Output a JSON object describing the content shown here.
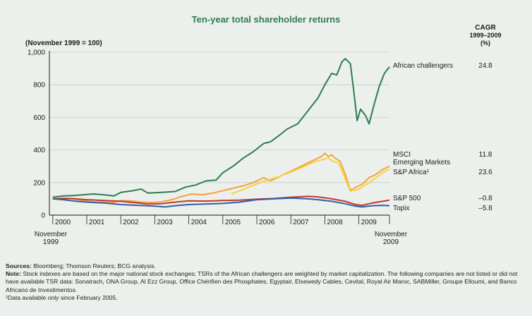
{
  "chart_data": {
    "type": "line",
    "title": "Ten-year total shareholder returns",
    "ylabel": "(November 1999 = 100)",
    "ylim": [
      0,
      1000
    ],
    "yticks": [
      "0",
      "200",
      "400",
      "600",
      "800",
      "1,000"
    ],
    "xlim": [
      1999.9,
      2009.9
    ],
    "xticks": [
      {
        "label": "2000",
        "x": 2000.0
      },
      {
        "label": "2001",
        "x": 2001.0
      },
      {
        "label": "2002",
        "x": 2002.0
      },
      {
        "label": "2003",
        "x": 2003.0
      },
      {
        "label": "2004",
        "x": 2004.0
      },
      {
        "label": "2005",
        "x": 2005.0
      },
      {
        "label": "2006",
        "x": 2006.0
      },
      {
        "label": "2007",
        "x": 2007.0
      },
      {
        "label": "2008",
        "x": 2008.0
      },
      {
        "label": "2009",
        "x": 2009.0
      }
    ],
    "x_start_label": [
      "November",
      "1999"
    ],
    "x_end_label": [
      "November",
      "2009"
    ],
    "cagr_header": [
      "CAGR",
      "1999–2009",
      "(%)"
    ],
    "series": [
      {
        "name": "African challengers",
        "label_lines": [
          "African challengers"
        ],
        "cagr": "24.8",
        "color": "#2e7d4f",
        "points": [
          [
            2000.0,
            110
          ],
          [
            2000.3,
            118
          ],
          [
            2000.6,
            120
          ],
          [
            2000.9,
            125
          ],
          [
            2001.2,
            130
          ],
          [
            2001.5,
            125
          ],
          [
            2001.8,
            118
          ],
          [
            2002.0,
            140
          ],
          [
            2002.3,
            148
          ],
          [
            2002.6,
            160
          ],
          [
            2002.8,
            135
          ],
          [
            2003.2,
            140
          ],
          [
            2003.6,
            145
          ],
          [
            2003.9,
            172
          ],
          [
            2004.2,
            185
          ],
          [
            2004.5,
            210
          ],
          [
            2004.8,
            215
          ],
          [
            2005.0,
            260
          ],
          [
            2005.3,
            300
          ],
          [
            2005.6,
            350
          ],
          [
            2005.9,
            390
          ],
          [
            2006.2,
            440
          ],
          [
            2006.4,
            450
          ],
          [
            2006.6,
            480
          ],
          [
            2006.9,
            530
          ],
          [
            2007.2,
            560
          ],
          [
            2007.5,
            640
          ],
          [
            2007.8,
            720
          ],
          [
            2008.0,
            800
          ],
          [
            2008.2,
            870
          ],
          [
            2008.35,
            860
          ],
          [
            2008.5,
            940
          ],
          [
            2008.6,
            960
          ],
          [
            2008.75,
            930
          ],
          [
            2008.85,
            760
          ],
          [
            2008.95,
            580
          ],
          [
            2009.05,
            650
          ],
          [
            2009.2,
            610
          ],
          [
            2009.3,
            560
          ],
          [
            2009.45,
            680
          ],
          [
            2009.6,
            790
          ],
          [
            2009.75,
            870
          ],
          [
            2009.9,
            910
          ]
        ]
      },
      {
        "name": "MSCI Emerging Markets",
        "label_lines": [
          "MSCI",
          "Emerging Markets"
        ],
        "cagr": "11.8",
        "color": "#f2a33c",
        "points": [
          [
            2000.0,
            100
          ],
          [
            2000.3,
            105
          ],
          [
            2000.6,
            100
          ],
          [
            2000.9,
            90
          ],
          [
            2001.2,
            80
          ],
          [
            2001.5,
            80
          ],
          [
            2001.8,
            78
          ],
          [
            2002.0,
            90
          ],
          [
            2002.3,
            88
          ],
          [
            2002.6,
            80
          ],
          [
            2002.9,
            78
          ],
          [
            2003.2,
            82
          ],
          [
            2003.5,
            95
          ],
          [
            2003.8,
            115
          ],
          [
            2004.1,
            130
          ],
          [
            2004.4,
            125
          ],
          [
            2004.7,
            135
          ],
          [
            2005.0,
            150
          ],
          [
            2005.3,
            165
          ],
          [
            2005.6,
            180
          ],
          [
            2005.9,
            200
          ],
          [
            2006.2,
            230
          ],
          [
            2006.4,
            210
          ],
          [
            2006.7,
            240
          ],
          [
            2007.0,
            270
          ],
          [
            2007.3,
            300
          ],
          [
            2007.6,
            330
          ],
          [
            2007.9,
            360
          ],
          [
            2008.0,
            380
          ],
          [
            2008.1,
            360
          ],
          [
            2008.2,
            370
          ],
          [
            2008.3,
            350
          ],
          [
            2008.45,
            330
          ],
          [
            2008.6,
            250
          ],
          [
            2008.75,
            150
          ],
          [
            2008.9,
            170
          ],
          [
            2009.1,
            190
          ],
          [
            2009.3,
            230
          ],
          [
            2009.5,
            250
          ],
          [
            2009.7,
            280
          ],
          [
            2009.9,
            300
          ]
        ]
      },
      {
        "name": "S&P Africa",
        "label_lines": [
          "S&P Africa¹"
        ],
        "cagr": "23.6",
        "color": "#f6d23a",
        "points": [
          [
            2005.25,
            130
          ],
          [
            2005.5,
            150
          ],
          [
            2005.8,
            175
          ],
          [
            2006.1,
            200
          ],
          [
            2006.4,
            220
          ],
          [
            2006.7,
            240
          ],
          [
            2007.0,
            265
          ],
          [
            2007.3,
            290
          ],
          [
            2007.6,
            320
          ],
          [
            2007.9,
            340
          ],
          [
            2008.1,
            350
          ],
          [
            2008.25,
            330
          ],
          [
            2008.4,
            320
          ],
          [
            2008.55,
            250
          ],
          [
            2008.7,
            170
          ],
          [
            2008.85,
            150
          ],
          [
            2009.0,
            160
          ],
          [
            2009.3,
            200
          ],
          [
            2009.5,
            230
          ],
          [
            2009.7,
            260
          ],
          [
            2009.9,
            285
          ]
        ]
      },
      {
        "name": "S&P 500",
        "label_lines": [
          "S&P 500"
        ],
        "cagr": "–0.8",
        "color": "#c0392b",
        "points": [
          [
            2000.0,
            100
          ],
          [
            2000.5,
            102
          ],
          [
            2001.0,
            95
          ],
          [
            2001.5,
            90
          ],
          [
            2002.0,
            85
          ],
          [
            2002.5,
            75
          ],
          [
            2002.8,
            68
          ],
          [
            2003.2,
            70
          ],
          [
            2003.6,
            80
          ],
          [
            2004.0,
            88
          ],
          [
            2004.5,
            86
          ],
          [
            2005.0,
            90
          ],
          [
            2005.5,
            92
          ],
          [
            2006.0,
            98
          ],
          [
            2006.5,
            102
          ],
          [
            2007.0,
            110
          ],
          [
            2007.5,
            115
          ],
          [
            2007.8,
            112
          ],
          [
            2008.2,
            100
          ],
          [
            2008.6,
            85
          ],
          [
            2008.9,
            65
          ],
          [
            2009.1,
            60
          ],
          [
            2009.4,
            75
          ],
          [
            2009.7,
            85
          ],
          [
            2009.9,
            92
          ]
        ]
      },
      {
        "name": "Topix",
        "label_lines": [
          "Topix"
        ],
        "cagr": "–5.8",
        "color": "#2f5fa7",
        "points": [
          [
            2000.0,
            100
          ],
          [
            2000.3,
            95
          ],
          [
            2000.7,
            85
          ],
          [
            2001.0,
            80
          ],
          [
            2001.5,
            75
          ],
          [
            2002.0,
            65
          ],
          [
            2002.5,
            60
          ],
          [
            2003.0,
            55
          ],
          [
            2003.3,
            50
          ],
          [
            2003.6,
            58
          ],
          [
            2004.0,
            65
          ],
          [
            2004.5,
            68
          ],
          [
            2005.0,
            72
          ],
          [
            2005.5,
            80
          ],
          [
            2006.0,
            95
          ],
          [
            2006.5,
            100
          ],
          [
            2007.0,
            105
          ],
          [
            2007.5,
            100
          ],
          [
            2007.8,
            95
          ],
          [
            2008.2,
            85
          ],
          [
            2008.6,
            70
          ],
          [
            2008.9,
            55
          ],
          [
            2009.1,
            50
          ],
          [
            2009.4,
            58
          ],
          [
            2009.7,
            60
          ],
          [
            2009.9,
            58
          ]
        ]
      }
    ]
  },
  "notes": {
    "sources_label": "Sources:",
    "sources_text": "Bloomberg; Thomson Reuters; BCG analysis.",
    "note_label": "Note:",
    "note_text": "Stock indexes are based on the major national stock exchanges; TSRs of the African challengers are weighted by market capitalization. The following companies are not listed or did not have available TSR data: Sonatrach, ONA Group, Al Ezz Group, Office Chérifien des Phosphates, Egyptair, Elsewedy Cables, Cevital, Royal Air Maroc, SABMiller, Groupe Elloumi, and Banco Africano de Investimentos.",
    "footnote": "¹Data available only since February 2005."
  }
}
